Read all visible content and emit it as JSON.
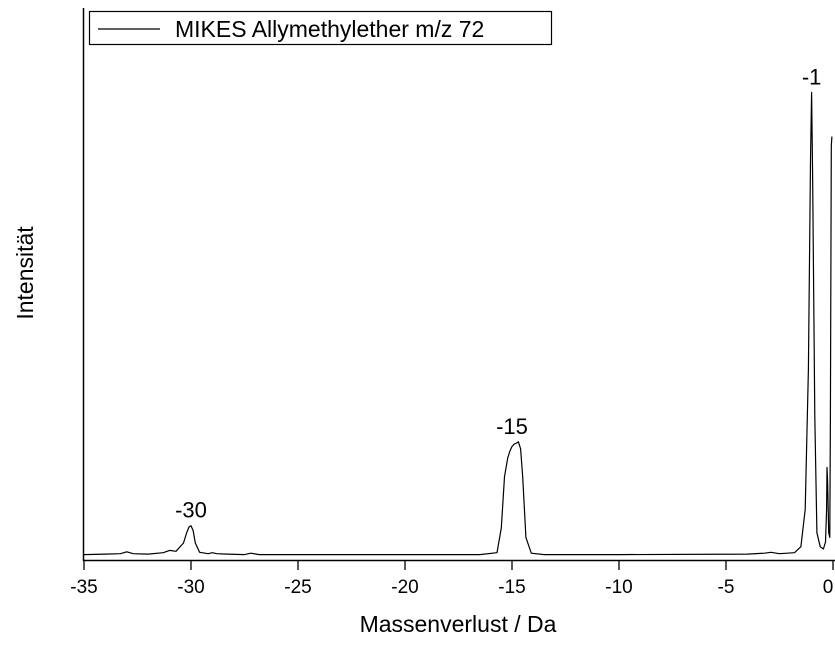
{
  "chart_data": {
    "type": "line",
    "title": "",
    "xlabel": "Massenverlust / Da",
    "ylabel": "Intensität",
    "xlim": [
      -35,
      0
    ],
    "ylim": [
      0,
      1.0
    ],
    "x_ticks": [
      "-35",
      "-30",
      "-25",
      "-20",
      "-15",
      "-10",
      "-5",
      "0"
    ],
    "x_tick_values": [
      -35,
      -30,
      -25,
      -20,
      -15,
      -10,
      -5,
      0
    ],
    "y_ticks_shown": false,
    "grid": false,
    "legend": {
      "position": "top-left",
      "entries": [
        "MIKES Allymethylether m/z 72"
      ]
    },
    "series": [
      {
        "name": "MIKES Allymethylether m/z 72",
        "color": "#000000",
        "x": [
          -35,
          -34,
          -33.3,
          -33,
          -32.7,
          -32,
          -31.3,
          -31,
          -30.7,
          -30.35,
          -30.2,
          -30.1,
          -30,
          -29.9,
          -29.8,
          -29.6,
          -29.2,
          -29,
          -28.8,
          -28.3,
          -27.5,
          -27.2,
          -26.8,
          -25,
          -20,
          -16.5,
          -15.7,
          -15.5,
          -15.35,
          -15.2,
          -15.1,
          -15,
          -14.9,
          -14.8,
          -14.7,
          -14.6,
          -14.5,
          -14.35,
          -14.1,
          -13.5,
          -10,
          -4,
          -3.2,
          -2.9,
          -2.5,
          -1.8,
          -1.5,
          -1.3,
          -1.15,
          -1.05,
          -1.0,
          -0.95,
          -0.85,
          -0.75,
          -0.6,
          -0.45,
          -0.35,
          -0.3,
          -0.28,
          -0.25,
          -0.2,
          -0.15,
          -0.12,
          -0.08,
          -0.05
        ],
        "y": [
          0.003,
          0.004,
          0.005,
          0.009,
          0.005,
          0.004,
          0.007,
          0.012,
          0.01,
          0.028,
          0.05,
          0.062,
          0.065,
          0.055,
          0.028,
          0.008,
          0.005,
          0.007,
          0.005,
          0.004,
          0.003,
          0.006,
          0.003,
          0.003,
          0.003,
          0.003,
          0.007,
          0.06,
          0.17,
          0.21,
          0.225,
          0.235,
          0.24,
          0.242,
          0.245,
          0.23,
          0.17,
          0.04,
          0.006,
          0.003,
          0.003,
          0.004,
          0.006,
          0.008,
          0.005,
          0.007,
          0.02,
          0.1,
          0.4,
          0.85,
          0.995,
          0.8,
          0.3,
          0.05,
          0.02,
          0.015,
          0.03,
          0.1,
          0.19,
          0.16,
          0.05,
          0.04,
          0.3,
          0.88,
          0.9
        ]
      }
    ],
    "annotations": [
      {
        "text": "-30",
        "x": -30,
        "y": 0.065
      },
      {
        "text": "-15",
        "x": -15,
        "y": 0.245
      },
      {
        "text": "-1",
        "x": -1,
        "y": 0.995
      }
    ]
  }
}
